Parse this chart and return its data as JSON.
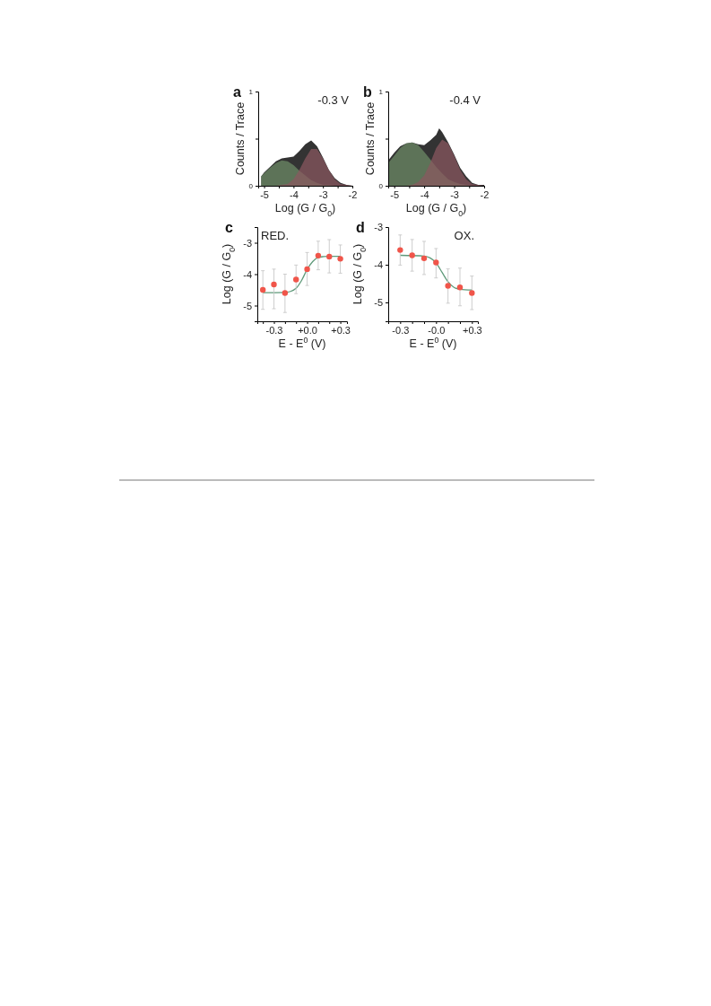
{
  "chart_data": [
    {
      "type": "area",
      "xlabel": "Log (G / G$_{0}$)",
      "ylabel": "Counts / Trace",
      "annotations": [
        "a",
        "-0.3 V"
      ],
      "xlim": [
        -5.2,
        -2
      ],
      "ylim": [
        0,
        1
      ],
      "xticks": [
        -5,
        {
          "value": -4.5,
          "label": null
        },
        -4,
        {
          "value": -3.5,
          "label": null
        },
        -3,
        {
          "value": -2.5,
          "label": null
        },
        -2
      ],
      "yticks": [
        0,
        {
          "value": 0.5,
          "label": null
        },
        1
      ],
      "series": [
        {
          "color": "#333333",
          "x": [
            -5.1,
            -5.0,
            -4.8,
            -4.6,
            -4.4,
            -4.2,
            -4.0,
            -3.8,
            -3.6,
            -3.4,
            -3.2,
            -3.0,
            -2.8,
            -2.6,
            -2.4,
            -2.2,
            -2.0
          ],
          "values": [
            0.1,
            0.14,
            0.2,
            0.26,
            0.29,
            0.3,
            0.31,
            0.37,
            0.44,
            0.48,
            0.42,
            0.3,
            0.17,
            0.08,
            0.03,
            0.01,
            0
          ]
        },
        {
          "color": "#6e8c66",
          "x": [
            -5.1,
            -5.0,
            -4.8,
            -4.6,
            -4.4,
            -4.2,
            -4.0,
            -3.8,
            -3.6,
            -3.4,
            -3.2,
            -3.0,
            -2.8,
            -2.6,
            -2.4,
            -2.2,
            -2.0
          ],
          "values": [
            0.1,
            0.13,
            0.19,
            0.24,
            0.27,
            0.26,
            0.22,
            0.16,
            0.11,
            0.06,
            0.03,
            0.01,
            0.01,
            0,
            0,
            0,
            0
          ]
        },
        {
          "color": "#8b5860",
          "x": [
            -5.1,
            -5.0,
            -4.8,
            -4.6,
            -4.4,
            -4.2,
            -4.0,
            -3.8,
            -3.6,
            -3.4,
            -3.2,
            -3.0,
            -2.8,
            -2.6,
            -2.4,
            -2.2,
            -2.0
          ],
          "values": [
            0,
            0,
            0,
            0,
            0.01,
            0.02,
            0.07,
            0.17,
            0.29,
            0.39,
            0.39,
            0.29,
            0.17,
            0.07,
            0.02,
            0.01,
            0
          ]
        }
      ]
    },
    {
      "type": "area",
      "xlabel": "Log (G / G$_{0}$)",
      "ylabel": "Counts / Trace",
      "annotations": [
        "b",
        "-0.4 V"
      ],
      "xlim": [
        -5.2,
        -2
      ],
      "ylim": [
        0,
        1
      ],
      "xticks": [
        -5,
        {
          "value": -4.5,
          "label": null
        },
        -4,
        {
          "value": -3.5,
          "label": null
        },
        -3,
        {
          "value": -2.5,
          "label": null
        },
        -2
      ],
      "yticks": [
        0,
        {
          "value": 0.5,
          "label": null
        },
        1
      ],
      "series": [
        {
          "color": "#333333",
          "x": [
            -5.2,
            -5.0,
            -4.8,
            -4.6,
            -4.4,
            -4.2,
            -4.0,
            -3.8,
            -3.6,
            -3.5,
            -3.4,
            -3.2,
            -3.0,
            -2.8,
            -2.6,
            -2.4,
            -2.2,
            -2.0
          ],
          "values": [
            0.27,
            0.35,
            0.42,
            0.45,
            0.46,
            0.44,
            0.43,
            0.48,
            0.54,
            0.61,
            0.57,
            0.46,
            0.33,
            0.19,
            0.1,
            0.03,
            0.01,
            0.01
          ]
        },
        {
          "color": "#6e8c66",
          "x": [
            -5.2,
            -5.0,
            -4.8,
            -4.6,
            -4.4,
            -4.2,
            -4.0,
            -3.8,
            -3.6,
            -3.4,
            -3.2,
            -3.0,
            -2.8,
            -2.6,
            -2.4,
            -2.2,
            -2.0
          ],
          "values": [
            0.24,
            0.32,
            0.4,
            0.45,
            0.46,
            0.43,
            0.36,
            0.28,
            0.2,
            0.13,
            0.07,
            0.04,
            0.02,
            0.01,
            0,
            0,
            0
          ]
        },
        {
          "color": "#8b5860",
          "x": [
            -5.2,
            -5.0,
            -4.8,
            -4.6,
            -4.4,
            -4.2,
            -4.0,
            -3.8,
            -3.6,
            -3.4,
            -3.2,
            -3.0,
            -2.8,
            -2.6,
            -2.4,
            -2.2,
            -2.0
          ],
          "values": [
            0,
            0,
            0,
            0,
            0.01,
            0.04,
            0.11,
            0.24,
            0.4,
            0.49,
            0.45,
            0.32,
            0.17,
            0.07,
            0.02,
            0.01,
            0
          ]
        }
      ]
    },
    {
      "type": "scatter",
      "xlabel": "E - E$^{0}$ (V)",
      "ylabel": "Log (G / G$_{0}$)",
      "annotations": [
        "c",
        "RED."
      ],
      "xlim": [
        -0.45,
        0.36
      ],
      "ylim": [
        -5.5,
        -2.5
      ],
      "xticks": [
        {
          "value": -0.4,
          "label": null
        },
        -0.3,
        {
          "value": -0.2,
          "label": null
        },
        {
          "value": -0.1,
          "label": null
        },
        {
          "value": 0,
          "label": "+0.0"
        },
        {
          "value": 0.1,
          "label": null
        },
        {
          "value": 0.2,
          "label": null
        },
        {
          "value": 0.3,
          "label": "+0.3"
        }
      ],
      "yticks": [
        -5,
        -4,
        -3
      ],
      "series": [
        {
          "type": "line",
          "color": "#5f9a7a",
          "x": [
            -0.4,
            -0.2,
            -0.15,
            -0.1,
            -0.05,
            0,
            0.05,
            0.1,
            0.15,
            0.2,
            0.3
          ],
          "values": [
            -4.59,
            -4.58,
            -4.55,
            -4.45,
            -4.2,
            -3.85,
            -3.6,
            -3.47,
            -3.44,
            -3.43,
            -3.43
          ]
        },
        {
          "marker": "circle",
          "color": "#f0554a",
          "x": [
            -0.4,
            -0.3,
            -0.2,
            -0.1,
            0,
            0.1,
            0.2,
            0.3
          ],
          "values": [
            -4.5,
            -4.33,
            -4.6,
            -4.17,
            -3.84,
            -3.41,
            -3.44,
            -3.51
          ],
          "errors": [
            [
              -5.12,
              -3.89
            ],
            [
              -5.1,
              -3.84
            ],
            [
              -5.22,
              -4.0
            ],
            [
              -4.62,
              -3.71
            ],
            [
              -4.36,
              -3.31
            ],
            [
              -3.86,
              -2.95
            ],
            [
              -3.96,
              -2.9
            ],
            [
              -3.97,
              -3.07
            ]
          ]
        }
      ]
    },
    {
      "type": "scatter",
      "xlabel": "E - E$^{0}$ (V)",
      "ylabel": "Log (G / G$_{0}$)",
      "annotations": [
        "d",
        "OX."
      ],
      "xlim": [
        -0.4,
        0.35
      ],
      "ylim": [
        -5.5,
        -3
      ],
      "xticks": [
        -0.3,
        {
          "value": -0.2,
          "label": null
        },
        {
          "value": -0.1,
          "label": null
        },
        {
          "value": 0,
          "label": "-0.0"
        },
        {
          "value": 0.1,
          "label": null
        },
        {
          "value": 0.2,
          "label": null
        },
        {
          "value": 0.3,
          "label": "+0.3"
        }
      ],
      "yticks": [
        -5,
        -4,
        -3
      ],
      "series": [
        {
          "type": "line",
          "color": "#5f9a7a",
          "x": [
            -0.3,
            -0.1,
            -0.05,
            0,
            0.05,
            0.1,
            0.15,
            0.2,
            0.3
          ],
          "values": [
            -3.75,
            -3.77,
            -3.82,
            -3.95,
            -4.2,
            -4.45,
            -4.6,
            -4.65,
            -4.67
          ]
        },
        {
          "marker": "circle",
          "color": "#f0554a",
          "x": [
            -0.3,
            -0.2,
            -0.1,
            0,
            0.1,
            0.2,
            0.3
          ],
          "values": [
            -3.61,
            -3.75,
            -3.83,
            -3.94,
            -4.56,
            -4.6,
            -4.75
          ],
          "errors": [
            [
              -4.01,
              -3.21
            ],
            [
              -4.17,
              -3.33
            ],
            [
              -4.26,
              -3.38
            ],
            [
              -4.35,
              -3.57
            ],
            [
              -5.02,
              -4.11
            ],
            [
              -5.09,
              -4.09
            ],
            [
              -5.19,
              -4.3
            ]
          ]
        }
      ]
    }
  ]
}
